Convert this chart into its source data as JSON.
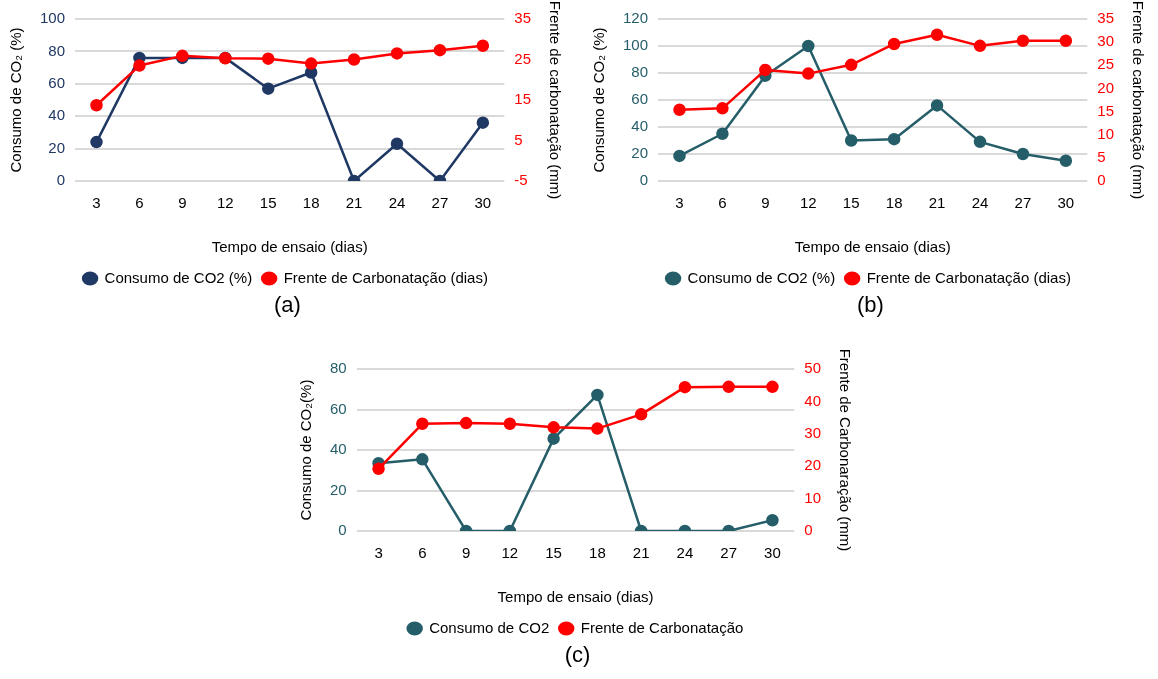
{
  "chart_data": [
    {
      "type": "line",
      "xlabel": "Tempo de ensaio (dias)",
      "ylabel": "Consumo de CO₂ (%)",
      "y2label": "Frente de carbonatação (mm)",
      "categories": [
        "3",
        "6",
        "9",
        "12",
        "15",
        "18",
        "21",
        "24",
        "27",
        "30"
      ],
      "series": [
        {
          "name": "Consumo de CO2 (%)",
          "color": "#203864",
          "values": [
            24,
            76,
            76,
            76,
            57,
            67,
            0,
            23,
            0,
            36
          ]
        },
        {
          "name": "Frente de Carbonatação (dias)",
          "color": "#ff0000",
          "axis": "y2",
          "values": [
            13.7,
            23.5,
            25.9,
            25.3,
            25.2,
            24,
            25,
            26.5,
            27.3,
            28.4
          ]
        }
      ],
      "ylim": [
        0,
        100
      ],
      "yticks": [
        0,
        20,
        40,
        60,
        80,
        100
      ],
      "y2lim": [
        -5,
        35
      ],
      "y2ticks": [
        -5,
        5,
        15,
        25,
        35
      ],
      "grid": "y",
      "legend": "bottom",
      "marker": "circle",
      "annotations": [
        "(a)"
      ]
    },
    {
      "type": "line",
      "xlabel": "Tempo de ensaio (dias)",
      "ylabel": "Consumo de CO₂ (%)",
      "y2label": "Frente de carbonatação (mm)",
      "categories": [
        "3",
        "6",
        "9",
        "12",
        "15",
        "18",
        "21",
        "24",
        "27",
        "30"
      ],
      "series": [
        {
          "name": "Consumo de CO2 (%)",
          "color": "#255e69",
          "values": [
            18.6,
            35,
            78,
            100,
            30,
            31,
            56,
            29,
            20,
            15
          ]
        },
        {
          "name": "Frente de Carbonatação (dias)",
          "color": "#ff0000",
          "axis": "y2",
          "values": [
            15.4,
            15.7,
            24,
            23.2,
            25.1,
            29.6,
            31.6,
            29.2,
            30.3,
            30.3
          ]
        }
      ],
      "ylim": [
        0,
        120
      ],
      "yticks": [
        0,
        20,
        40,
        60,
        80,
        100,
        120
      ],
      "y2lim": [
        0,
        35
      ],
      "y2ticks": [
        0,
        5,
        10,
        15,
        20,
        25,
        30,
        35
      ],
      "grid": "y",
      "legend": "bottom",
      "marker": "circle",
      "annotations": [
        "(b)"
      ]
    },
    {
      "type": "line",
      "xlabel": "Tempo de ensaio (dias)",
      "ylabel": "Consumo de CO₂(%)",
      "y2label": "Frente de Carbonaração (mm)",
      "categories": [
        "3",
        "6",
        "9",
        "12",
        "15",
        "18",
        "21",
        "24",
        "27",
        "30"
      ],
      "series": [
        {
          "name": "Consumo de CO2",
          "color": "#255e69",
          "values": [
            33.5,
            35.4,
            0,
            0,
            45.6,
            67.2,
            0,
            0,
            0,
            5.3
          ]
        },
        {
          "name": "Frente de Carbonatação",
          "color": "#ff0000",
          "axis": "y2",
          "values": [
            19.2,
            33.1,
            33.3,
            33.1,
            32,
            31.6,
            36,
            44.4,
            44.5,
            44.5
          ]
        }
      ],
      "ylim": [
        0,
        80
      ],
      "yticks": [
        0,
        20,
        40,
        60,
        80
      ],
      "y2lim": [
        0,
        50
      ],
      "y2ticks": [
        0,
        10,
        20,
        30,
        40,
        50
      ],
      "grid": "y",
      "legend": "bottom",
      "marker": "circle",
      "annotations": [
        "(c)"
      ]
    }
  ]
}
